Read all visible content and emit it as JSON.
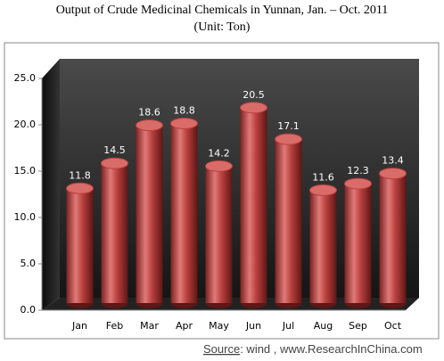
{
  "chart_data": {
    "type": "bar",
    "title": "Output of Crude Medicinal Chemicals in Yunnan, Jan. – Oct. 2011",
    "subtitle": "(Unit: Ton)",
    "categories": [
      "Jan",
      "Feb",
      "Mar",
      "Apr",
      "May",
      "Jun",
      "Jul",
      "Aug",
      "Sep",
      "Oct"
    ],
    "values": [
      11.8,
      14.5,
      18.6,
      18.8,
      14.2,
      20.5,
      17.1,
      11.6,
      12.3,
      13.4
    ],
    "color": "#c0504d",
    "ylim": [
      0,
      25
    ],
    "yticks": [
      {
        "value": 0,
        "label": "0.0"
      },
      {
        "value": 5,
        "label": "5.0"
      },
      {
        "value": 10,
        "label": "10.0"
      },
      {
        "value": 15,
        "label": "15.0"
      },
      {
        "value": 20,
        "label": "20.0"
      },
      {
        "value": 25,
        "label": "25.0"
      }
    ],
    "source_label": "Source",
    "source_text": ": wind , www.ResearchInChina.com"
  }
}
